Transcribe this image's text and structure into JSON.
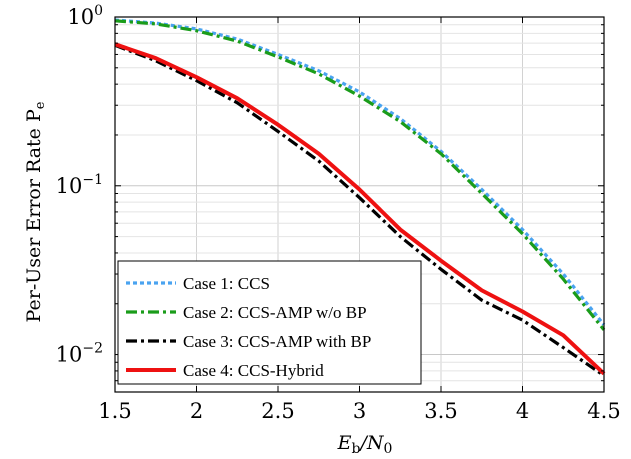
{
  "chart_data": {
    "type": "line",
    "xlabel": "E_b/N_0",
    "xlabel_main": "E",
    "xlabel_sub1": "b",
    "xlabel_mid": "/N",
    "xlabel_sub2": "0",
    "ylabel": "Per-User Error Rate P_e",
    "ylabel_main": "Per-User Error Rate P",
    "ylabel_sub": "e",
    "xlim": [
      1.5,
      4.5
    ],
    "ylim": [
      0.006,
      1
    ],
    "y_scale": "log",
    "grid": true,
    "legend_position": "bottom-left",
    "x_ticks": [
      {
        "value": 1.5,
        "label": "1.5"
      },
      {
        "value": 2,
        "label": "2"
      },
      {
        "value": 2.5,
        "label": "2.5"
      },
      {
        "value": 3,
        "label": "3"
      },
      {
        "value": 3.5,
        "label": "3.5"
      },
      {
        "value": 4,
        "label": "4"
      },
      {
        "value": 4.5,
        "label": "4.5"
      }
    ],
    "y_ticks": [
      {
        "value": 1,
        "base": "10",
        "exp": "0"
      },
      {
        "value": 0.1,
        "base": "10",
        "exp": "−1"
      },
      {
        "value": 0.01,
        "base": "10",
        "exp": "−2"
      }
    ],
    "series": [
      {
        "name": "Case 1: CCS",
        "color": "#4aa3f0",
        "style": "dotted",
        "x": [
          1.5,
          1.75,
          2.0,
          2.25,
          2.5,
          2.75,
          3.0,
          3.25,
          3.5,
          3.75,
          4.0,
          4.25,
          4.5
        ],
        "y": [
          0.96,
          0.92,
          0.85,
          0.74,
          0.6,
          0.48,
          0.36,
          0.25,
          0.16,
          0.095,
          0.055,
          0.03,
          0.015
        ]
      },
      {
        "name": "Case 2: CCS-AMP w/o BP",
        "color": "#1a9c1a",
        "style": "dashdot",
        "x": [
          1.5,
          1.75,
          2.0,
          2.25,
          2.5,
          2.75,
          3.0,
          3.25,
          3.5,
          3.75,
          4.0,
          4.25,
          4.5
        ],
        "y": [
          0.95,
          0.91,
          0.83,
          0.72,
          0.58,
          0.46,
          0.34,
          0.24,
          0.155,
          0.09,
          0.052,
          0.028,
          0.014
        ]
      },
      {
        "name": "Case 3: CCS-AMP with BP",
        "color": "#000000",
        "style": "dashdot",
        "x": [
          1.5,
          1.75,
          2.0,
          2.25,
          2.5,
          2.75,
          3.0,
          3.25,
          3.5,
          3.75,
          4.0,
          4.25,
          4.5
        ],
        "y": [
          0.68,
          0.55,
          0.42,
          0.31,
          0.21,
          0.14,
          0.085,
          0.05,
          0.032,
          0.021,
          0.016,
          0.011,
          0.0075
        ]
      },
      {
        "name": "Case 4: CCS-Hybrid",
        "color": "#ee1111",
        "style": "solid",
        "x": [
          1.5,
          1.75,
          2.0,
          2.25,
          2.5,
          2.75,
          3.0,
          3.25,
          3.5,
          3.75,
          4.0,
          4.25,
          4.5
        ],
        "y": [
          0.69,
          0.57,
          0.44,
          0.33,
          0.23,
          0.155,
          0.095,
          0.055,
          0.036,
          0.024,
          0.018,
          0.013,
          0.0077
        ]
      }
    ]
  }
}
